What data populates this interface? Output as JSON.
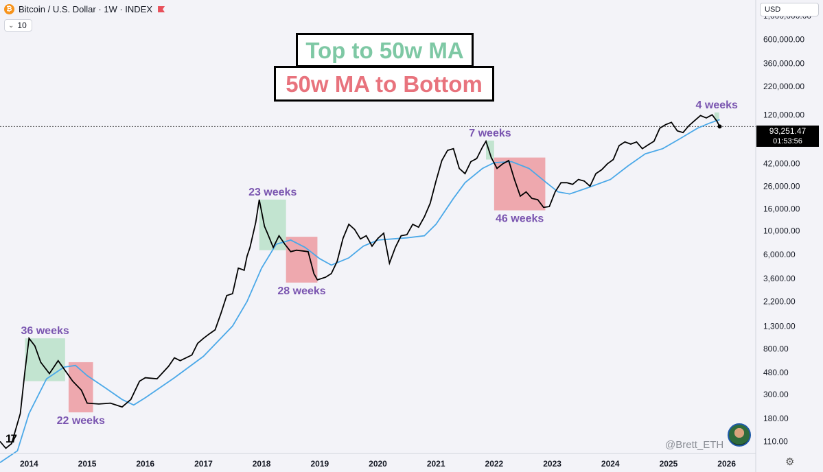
{
  "header": {
    "title": "Bitcoin / U.S. Dollar · 1W · INDEX",
    "coin_icon": "bitcoin-icon",
    "flag_icon": "flag-icon",
    "interval_value": "10"
  },
  "price_scale": {
    "currency": "USD",
    "last_price": "93,251.47",
    "countdown": "01:53:56"
  },
  "legend": {
    "top_label": "Top to 50w MA",
    "bottom_label": "50w MA to Bottom",
    "top_color": "#7ec8a4",
    "bottom_color": "#e8737d"
  },
  "watermark": "@Brett_ETH",
  "colors": {
    "price_line": "#000000",
    "ma_line": "#4aa8e8",
    "green_box": "#b9e0c9",
    "red_box": "#ec9aa1",
    "annotation": "#7a55b0"
  },
  "chart_data": {
    "type": "line",
    "scale": "log",
    "xlabel": "",
    "ylabel": "",
    "xlim": [
      2013.5,
      2026.5
    ],
    "ylim": [
      85,
      1400000
    ],
    "x_ticks": [
      "2014",
      "2015",
      "2016",
      "2017",
      "2018",
      "2019",
      "2020",
      "2021",
      "2022",
      "2023",
      "2024",
      "2025",
      "2026"
    ],
    "y_ticks": [
      "1,000,000.00",
      "600,000.00",
      "360,000.00",
      "220,000.00",
      "120,000.00",
      "42,000.00",
      "26,000.00",
      "16,000.00",
      "10,000.00",
      "6,000.00",
      "3,600.00",
      "2,200.00",
      "1,300.00",
      "800.00",
      "480.00",
      "300.00",
      "180.00",
      "110.00"
    ],
    "series": [
      {
        "name": "",
        "role": "price",
        "x": [
          2013.5,
          2013.6,
          2013.7,
          2013.85,
          2013.93,
          2014.0,
          2014.1,
          2014.2,
          2014.35,
          2014.5,
          2014.6,
          2014.75,
          2014.9,
          2015.0,
          2015.2,
          2015.4,
          2015.6,
          2015.75,
          2015.9,
          2016.0,
          2016.2,
          2016.4,
          2016.5,
          2016.6,
          2016.8,
          2016.9,
          2017.0,
          2017.1,
          2017.2,
          2017.3,
          2017.4,
          2017.5,
          2017.6,
          2017.7,
          2017.75,
          2017.8,
          2017.9,
          2017.96,
          2018.05,
          2018.1,
          2018.2,
          2018.3,
          2018.4,
          2018.5,
          2018.6,
          2018.7,
          2018.8,
          2018.9,
          2018.96,
          2019.1,
          2019.2,
          2019.3,
          2019.4,
          2019.5,
          2019.6,
          2019.7,
          2019.8,
          2019.9,
          2020.0,
          2020.1,
          2020.2,
          2020.3,
          2020.4,
          2020.5,
          2020.6,
          2020.7,
          2020.8,
          2020.9,
          2021.0,
          2021.1,
          2021.2,
          2021.3,
          2021.4,
          2021.5,
          2021.6,
          2021.7,
          2021.8,
          2021.86,
          2021.95,
          2022.05,
          2022.15,
          2022.25,
          2022.35,
          2022.45,
          2022.55,
          2022.65,
          2022.75,
          2022.85,
          2022.95,
          2023.05,
          2023.15,
          2023.25,
          2023.35,
          2023.45,
          2023.55,
          2023.65,
          2023.75,
          2023.85,
          2023.95,
          2024.05,
          2024.15,
          2024.25,
          2024.35,
          2024.45,
          2024.55,
          2024.65,
          2024.75,
          2024.85,
          2024.95,
          2025.05,
          2025.15,
          2025.25,
          2025.35,
          2025.45,
          2025.55,
          2025.65,
          2025.75,
          2025.83,
          2025.88
        ],
        "y": [
          110,
          95,
          105,
          200,
          500,
          1000,
          850,
          600,
          470,
          620,
          520,
          400,
          330,
          250,
          245,
          250,
          230,
          270,
          400,
          430,
          420,
          550,
          660,
          620,
          700,
          900,
          1000,
          1100,
          1200,
          1700,
          2500,
          2600,
          4500,
          4300,
          5800,
          7000,
          12000,
          19500,
          11000,
          9500,
          7000,
          9000,
          7500,
          6400,
          6600,
          6500,
          6400,
          4000,
          3500,
          3700,
          4000,
          5200,
          8500,
          11500,
          10300,
          8400,
          9000,
          7200,
          8500,
          9500,
          5000,
          7000,
          9000,
          9200,
          11500,
          10800,
          13500,
          18000,
          29000,
          45000,
          56000,
          58000,
          38000,
          34000,
          44000,
          47000,
          60000,
          68000,
          48000,
          38000,
          42000,
          45000,
          30000,
          21000,
          23000,
          20000,
          19500,
          16500,
          16800,
          23000,
          28000,
          28000,
          27000,
          30000,
          29000,
          26000,
          34000,
          37000,
          42000,
          46000,
          62000,
          67000,
          64000,
          67000,
          58000,
          63000,
          68000,
          90000,
          97000,
          102000,
          85000,
          82000,
          95000,
          106000,
          118000,
          112000,
          120000,
          105000,
          93251
        ]
      },
      {
        "name": "",
        "role": "50w MA",
        "x": [
          2013.5,
          2013.8,
          2014.0,
          2014.3,
          2014.6,
          2014.8,
          2015.0,
          2015.3,
          2015.6,
          2015.8,
          2016.0,
          2016.5,
          2017.0,
          2017.5,
          2017.75,
          2018.0,
          2018.25,
          2018.5,
          2018.75,
          2019.0,
          2019.2,
          2019.5,
          2019.75,
          2020.0,
          2020.5,
          2020.8,
          2021.0,
          2021.3,
          2021.5,
          2021.8,
          2022.0,
          2022.3,
          2022.6,
          2022.9,
          2023.1,
          2023.3,
          2023.6,
          2024.0,
          2024.3,
          2024.6,
          2024.9,
          2025.2,
          2025.5,
          2025.7,
          2025.88
        ],
        "y": [
          70,
          90,
          200,
          420,
          540,
          560,
          450,
          350,
          270,
          240,
          280,
          430,
          680,
          1300,
          2200,
          4500,
          7500,
          8200,
          7000,
          5500,
          4800,
          5600,
          7200,
          8200,
          8600,
          9000,
          11500,
          20000,
          28000,
          38000,
          43000,
          44000,
          38000,
          28000,
          23000,
          22000,
          25000,
          30000,
          40000,
          52000,
          58000,
          72000,
          90000,
          100000,
          108000
        ]
      }
    ],
    "annotations": [
      {
        "label": "36 weeks",
        "kind": "top",
        "x0": 2013.93,
        "x1": 2014.62,
        "y0": 400,
        "y1": 1000
      },
      {
        "label": "22 weeks",
        "kind": "bottom",
        "x0": 2014.68,
        "x1": 2015.1,
        "y0": 205,
        "y1": 600
      },
      {
        "label": "23 weeks",
        "kind": "top",
        "x0": 2017.96,
        "x1": 2018.42,
        "y0": 6600,
        "y1": 19500
      },
      {
        "label": "28 weeks",
        "kind": "bottom",
        "x0": 2018.42,
        "x1": 2018.96,
        "y0": 3300,
        "y1": 8800
      },
      {
        "label": "7 weeks",
        "kind": "top",
        "x0": 2021.86,
        "x1": 2022.0,
        "y0": 46000,
        "y1": 69000
      },
      {
        "label": "46 weeks",
        "kind": "bottom",
        "x0": 2022.0,
        "x1": 2022.88,
        "y0": 15500,
        "y1": 48000
      },
      {
        "label": "4 weeks",
        "kind": "top",
        "x0": 2025.79,
        "x1": 2025.87,
        "y0": 105000,
        "y1": 126000
      }
    ]
  }
}
